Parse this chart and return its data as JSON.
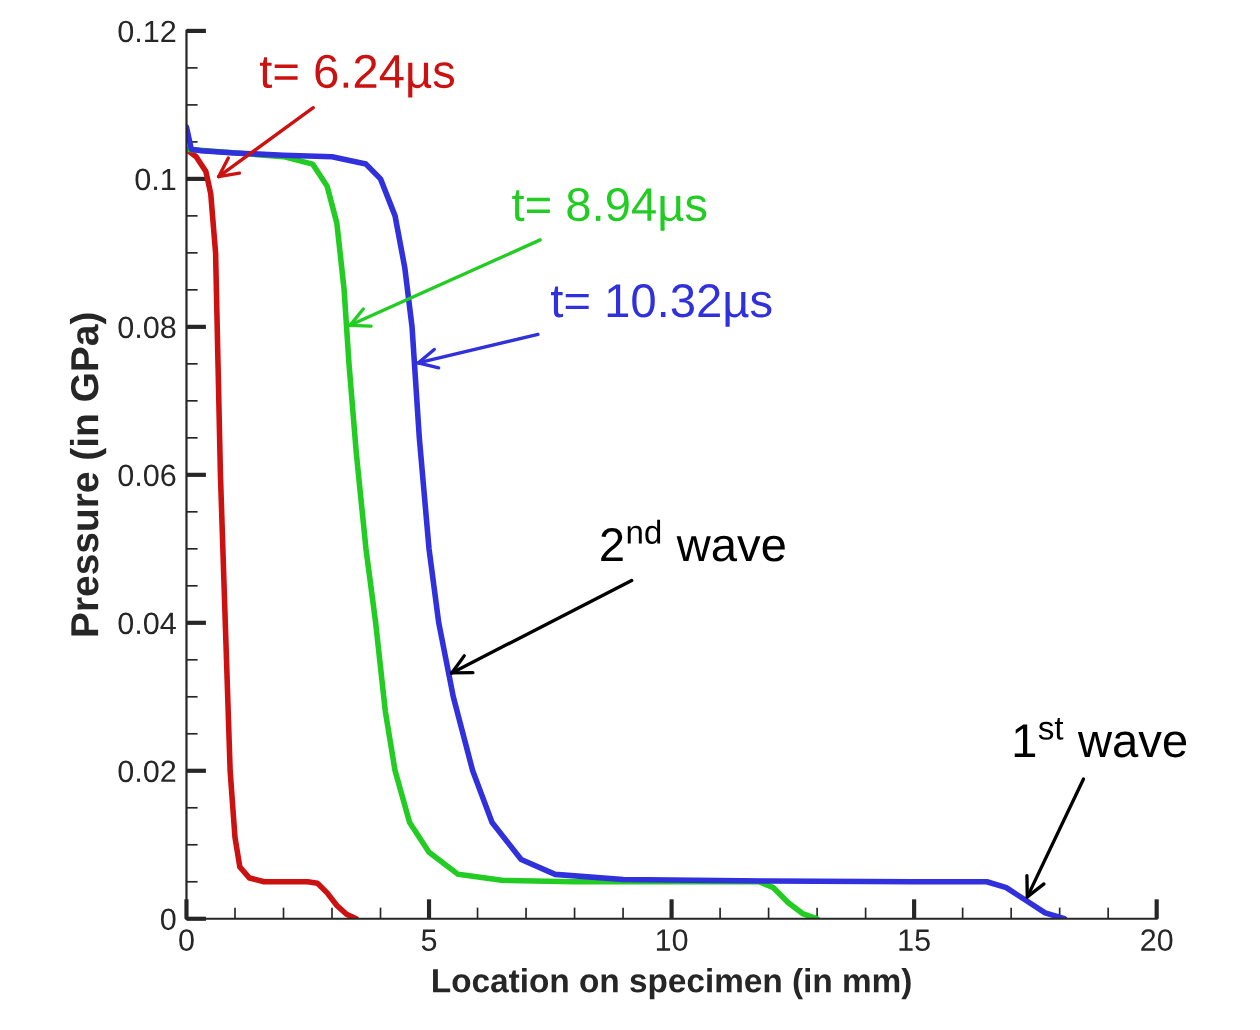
{
  "chart_data": {
    "type": "line",
    "xlabel": "Location on specimen (in mm)",
    "ylabel": "Pressure (in GPa)",
    "xlim": [
      0,
      20
    ],
    "ylim": [
      0,
      0.12
    ],
    "xticks": [
      0,
      5,
      10,
      15,
      20
    ],
    "yticks": [
      0,
      0.02,
      0.04,
      0.06,
      0.08,
      0.1,
      0.12
    ],
    "grid": false,
    "legend": false,
    "series": [
      {
        "color": "#cc1111",
        "x": [
          0,
          0.2,
          0.4,
          0.5,
          0.6,
          0.65,
          0.7,
          0.8,
          0.9,
          1.0,
          1.1,
          1.3,
          1.6,
          2.0,
          2.5,
          2.7,
          2.9,
          3.1,
          3.3,
          3.5
        ],
        "values": [
          0.104,
          0.103,
          0.101,
          0.098,
          0.09,
          0.075,
          0.06,
          0.04,
          0.02,
          0.011,
          0.007,
          0.0055,
          0.005,
          0.005,
          0.005,
          0.0048,
          0.0035,
          0.0018,
          0.0006,
          0
        ]
      },
      {
        "color": "#22cc22",
        "x": [
          0,
          2,
          2.6,
          2.9,
          3.1,
          3.25,
          3.35,
          3.5,
          3.7,
          3.9,
          4.1,
          4.3,
          4.6,
          5.0,
          5.6,
          6.5,
          8,
          10,
          11.8,
          12.1,
          12.4,
          12.7,
          13.0
        ],
        "values": [
          0.104,
          0.103,
          0.102,
          0.099,
          0.094,
          0.085,
          0.075,
          0.063,
          0.05,
          0.04,
          0.028,
          0.02,
          0.013,
          0.009,
          0.006,
          0.0052,
          0.005,
          0.005,
          0.005,
          0.0042,
          0.0022,
          0.0007,
          0
        ]
      },
      {
        "color": "#3030dd",
        "x": [
          0,
          0.1,
          0.3,
          1,
          2,
          3,
          3.7,
          4.0,
          4.3,
          4.5,
          4.65,
          4.8,
          5.0,
          5.2,
          5.5,
          5.9,
          6.3,
          6.9,
          7.6,
          9,
          12,
          15,
          16.5,
          16.9,
          17.3,
          17.7,
          18.1
        ],
        "values": [
          0.107,
          0.104,
          0.1038,
          0.1035,
          0.1032,
          0.103,
          0.102,
          0.1,
          0.095,
          0.088,
          0.08,
          0.065,
          0.05,
          0.04,
          0.03,
          0.02,
          0.013,
          0.008,
          0.006,
          0.0053,
          0.0051,
          0.005,
          0.005,
          0.0042,
          0.0025,
          0.0008,
          0
        ]
      }
    ],
    "annotations": [
      {
        "text": "t= 6.24µs",
        "x": 0.6,
        "y": 0.1
      },
      {
        "text": "t= 8.94µs",
        "x": 3.3,
        "y": 0.08
      },
      {
        "text": "t= 10.32µs",
        "x": 4.7,
        "y": 0.075
      },
      {
        "text": "2$^{nd}$ wave",
        "x": 5.4,
        "y": 0.033
      },
      {
        "text": "1$^{st}$ wave",
        "x": 17.3,
        "y": 0.0025
      }
    ]
  }
}
